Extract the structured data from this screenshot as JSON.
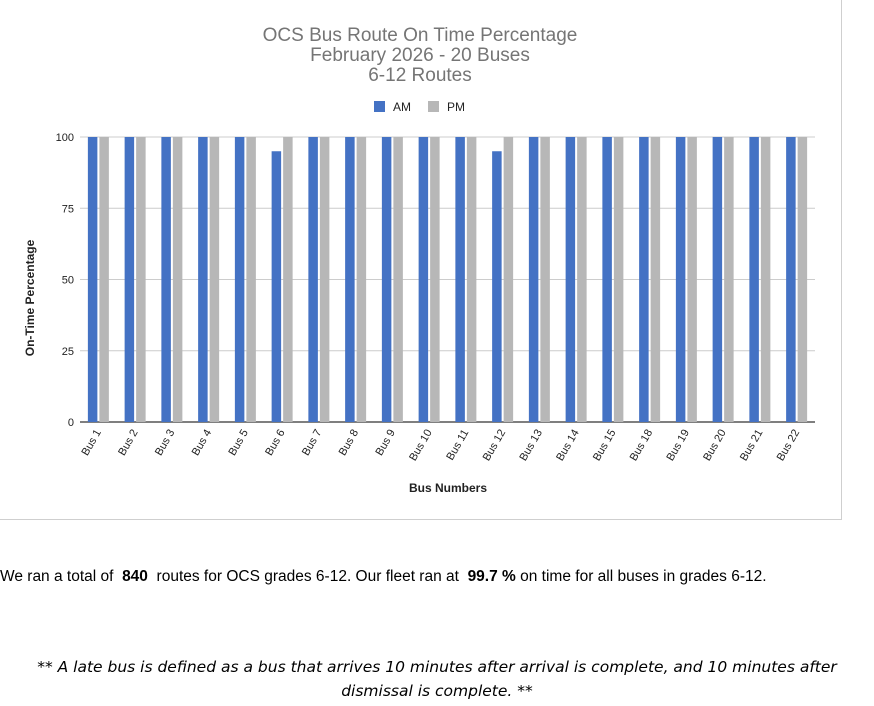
{
  "chart_data": {
    "type": "bar",
    "title_lines": [
      "OCS Bus Route On Time Percentage",
      "February 2026 - 20 Buses",
      "6-12 Routes"
    ],
    "xlabel": "Bus Numbers",
    "ylabel": "On-Time Percentage",
    "ylim": [
      0,
      100
    ],
    "yticks": [
      0,
      25,
      50,
      75,
      100
    ],
    "grid": true,
    "legend_position": "top",
    "categories": [
      "Bus 1",
      "Bus 2",
      "Bus 3",
      "Bus 4",
      "Bus 5",
      "Bus 6",
      "Bus 7",
      "Bus 8",
      "Bus 9",
      "Bus 10",
      "Bus 11",
      "Bus 12",
      "Bus 13",
      "Bus 14",
      "Bus 15",
      "Bus 18",
      "Bus 19",
      "Bus 20",
      "Bus 21",
      "Bus 22"
    ],
    "series": [
      {
        "name": "AM",
        "color": "#4472c4",
        "values": [
          100,
          100,
          100,
          100,
          100,
          95,
          100,
          100,
          100,
          100,
          100,
          95,
          100,
          100,
          100,
          100,
          100,
          100,
          100,
          100
        ]
      },
      {
        "name": "PM",
        "color": "#b7b7b7",
        "values": [
          100,
          100,
          100,
          100,
          100,
          100,
          100,
          100,
          100,
          100,
          100,
          100,
          100,
          100,
          100,
          100,
          100,
          100,
          100,
          100
        ]
      }
    ]
  },
  "summary": {
    "prefix": "We ran a total of  ",
    "routes_value": "840",
    "middle": "  routes for OCS grades 6-12. Our fleet ran at  ",
    "percent_value": "99.7",
    "percent_unit": " %",
    "suffix": " on time for all buses in grades 6-12."
  },
  "footnote": "** A late bus is defined as a bus that arrives 10 minutes after arrival is complete, and 10 minutes after dismissal is complete. **"
}
